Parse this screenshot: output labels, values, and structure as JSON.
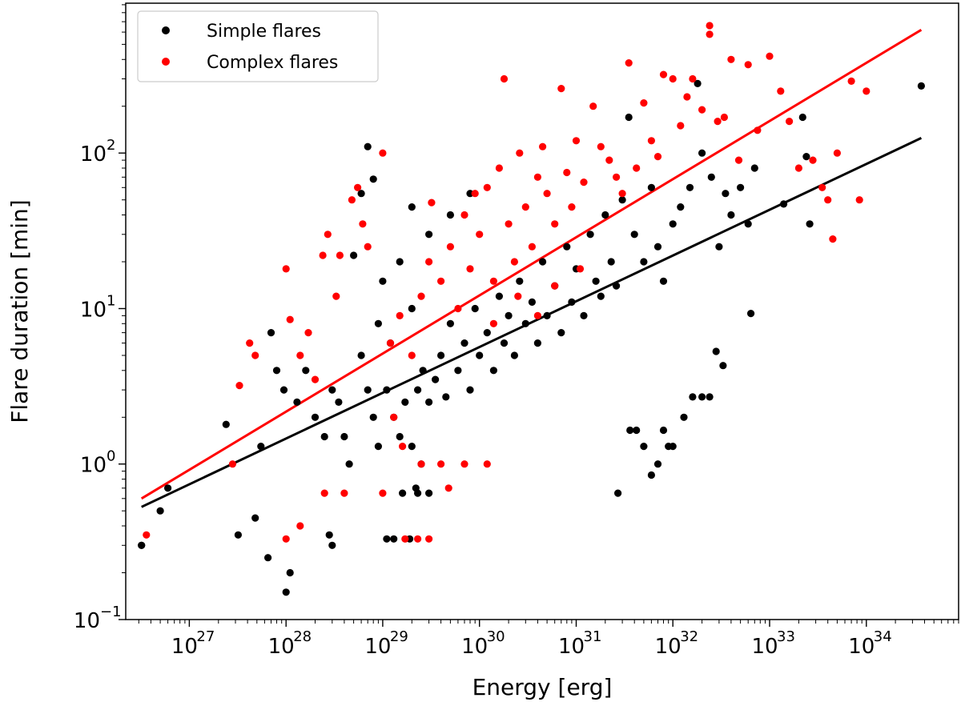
{
  "chart_data": {
    "type": "scatter",
    "xscale": "log",
    "yscale": "log",
    "xlim": [
      2.2e+26,
      9e+34
    ],
    "ylim": [
      0.1,
      920
    ],
    "xlabel": "Energy [erg]",
    "ylabel": "Flare duration [min]",
    "x_ticks": [
      {
        "base": "10",
        "exp": "27",
        "value": 1e+27
      },
      {
        "base": "10",
        "exp": "28",
        "value": 1e+28
      },
      {
        "base": "10",
        "exp": "29",
        "value": 1e+29
      },
      {
        "base": "10",
        "exp": "30",
        "value": 1e+30
      },
      {
        "base": "10",
        "exp": "31",
        "value": 1e+31
      },
      {
        "base": "10",
        "exp": "32",
        "value": 1e+32
      },
      {
        "base": "10",
        "exp": "33",
        "value": 1e+33
      },
      {
        "base": "10",
        "exp": "34",
        "value": 1e+34
      }
    ],
    "y_ticks": [
      {
        "base": "10",
        "exp": "−1",
        "value": 0.1
      },
      {
        "base": "10",
        "exp": "0",
        "value": 1
      },
      {
        "base": "10",
        "exp": "1",
        "value": 10
      },
      {
        "base": "10",
        "exp": "2",
        "value": 100
      }
    ],
    "grid": false,
    "legend_position": "top-left",
    "series": [
      {
        "name": "Simple flares",
        "color": "#000000",
        "points": [
          [
            3.2e+26,
            0.3
          ],
          [
            5e+26,
            0.5
          ],
          [
            6e+26,
            0.7
          ],
          [
            2.4e+27,
            1.8
          ],
          [
            3.2e+27,
            0.35
          ],
          [
            4.8e+27,
            0.45
          ],
          [
            6.5e+27,
            0.25
          ],
          [
            1e+28,
            0.15
          ],
          [
            1.1e+28,
            0.2
          ],
          [
            2.8e+28,
            0.35
          ],
          [
            3e+28,
            0.3
          ],
          [
            3.2e+26,
            0.3
          ],
          [
            5.5e+27,
            1.3
          ],
          [
            7e+27,
            7.0
          ],
          [
            8e+27,
            4.0
          ],
          [
            9.5e+27,
            3.0
          ],
          [
            1.3e+28,
            2.5
          ],
          [
            1.6e+28,
            4.0
          ],
          [
            2e+28,
            2.0
          ],
          [
            2.5e+28,
            1.5
          ],
          [
            3e+28,
            3.0
          ],
          [
            3.5e+28,
            2.5
          ],
          [
            4e+28,
            1.5
          ],
          [
            4.5e+28,
            1.0
          ],
          [
            5e+28,
            22.0
          ],
          [
            6e+28,
            55.0
          ],
          [
            7e+28,
            110.0
          ],
          [
            8e+28,
            68.0
          ],
          [
            6e+28,
            5.0
          ],
          [
            7e+28,
            3.0
          ],
          [
            8e+28,
            2.0
          ],
          [
            9e+28,
            1.3
          ],
          [
            1.1e+29,
            3.0
          ],
          [
            1.3e+29,
            2.0
          ],
          [
            1.5e+29,
            1.5
          ],
          [
            1.7e+29,
            2.5
          ],
          [
            2e+29,
            1.3
          ],
          [
            2.3e+29,
            3.0
          ],
          [
            2.6e+29,
            4.0
          ],
          [
            3e+29,
            2.5
          ],
          [
            3.5e+29,
            3.5
          ],
          [
            4e+29,
            5.0
          ],
          [
            4.5e+29,
            2.7
          ],
          [
            5e+29,
            8.0
          ],
          [
            6e+29,
            4.0
          ],
          [
            7e+29,
            6.0
          ],
          [
            8e+29,
            3.0
          ],
          [
            9e+29,
            10.0
          ],
          [
            1e+30,
            5.0
          ],
          [
            1.2e+30,
            7.0
          ],
          [
            1.4e+30,
            4.0
          ],
          [
            1.6e+30,
            12.0
          ],
          [
            1.8e+30,
            6.0
          ],
          [
            2e+30,
            9.0
          ],
          [
            2.3e+30,
            5.0
          ],
          [
            2.6e+30,
            15.0
          ],
          [
            3e+30,
            8.0
          ],
          [
            3.5e+30,
            11.0
          ],
          [
            4e+30,
            6.0
          ],
          [
            4.5e+30,
            20.0
          ],
          [
            5e+30,
            9.0
          ],
          [
            6e+30,
            14.0
          ],
          [
            7e+30,
            7.0
          ],
          [
            8e+30,
            25.0
          ],
          [
            9e+30,
            11.0
          ],
          [
            1e+31,
            18.0
          ],
          [
            1.2e+31,
            9.0
          ],
          [
            1.4e+31,
            30.0
          ],
          [
            1.6e+31,
            15.0
          ],
          [
            1.8e+31,
            12.0
          ],
          [
            2e+31,
            40.0
          ],
          [
            2.3e+31,
            20.0
          ],
          [
            2.6e+31,
            14.0
          ],
          [
            3e+31,
            50.0
          ],
          [
            3.5e+31,
            170.0
          ],
          [
            4e+31,
            30.0
          ],
          [
            5e+31,
            20.0
          ],
          [
            6e+31,
            60.0
          ],
          [
            7e+31,
            25.0
          ],
          [
            8e+31,
            15.0
          ],
          [
            1e+32,
            35.0
          ],
          [
            1.2e+32,
            45.0
          ],
          [
            1.5e+32,
            60.0
          ],
          [
            1.8e+32,
            280.0
          ],
          [
            2e+32,
            100.0
          ],
          [
            2.5e+32,
            70.0
          ],
          [
            3e+32,
            25.0
          ],
          [
            3.5e+32,
            55.0
          ],
          [
            4e+32,
            40.0
          ],
          [
            5e+32,
            60.0
          ],
          [
            6e+32,
            35.0
          ],
          [
            7e+32,
            80.0
          ],
          [
            2.2e+33,
            170.0
          ],
          [
            2.4e+33,
            95.0
          ],
          [
            2.6e+33,
            35.0
          ],
          [
            1.4e+33,
            47.0
          ],
          [
            3.7e+34,
            270.0
          ],
          [
            2.7e+31,
            0.65
          ],
          [
            3.6e+31,
            1.65
          ],
          [
            4.2e+31,
            1.65
          ],
          [
            5e+31,
            1.3
          ],
          [
            6e+31,
            0.85
          ],
          [
            7e+31,
            1.0
          ],
          [
            8e+31,
            1.65
          ],
          [
            9e+31,
            1.3
          ],
          [
            1e+32,
            1.3
          ],
          [
            1.3e+32,
            2.0
          ],
          [
            1.6e+32,
            2.7
          ],
          [
            2e+32,
            2.7
          ],
          [
            2.4e+32,
            2.7
          ],
          [
            2.8e+32,
            5.3
          ],
          [
            3.3e+32,
            4.3
          ],
          [
            6.4e+32,
            9.3
          ],
          [
            2e+29,
            45.0
          ],
          [
            5e+29,
            40.0
          ],
          [
            8e+29,
            55.0
          ],
          [
            1.5e+29,
            20.0
          ],
          [
            3e+29,
            30.0
          ],
          [
            1e+29,
            15.0
          ],
          [
            9e+28,
            8.0
          ],
          [
            1.2e+29,
            6.0
          ],
          [
            2e+29,
            10.0
          ],
          [
            2.5e+29,
            1.0
          ],
          [
            3e+29,
            0.65
          ],
          [
            2.2e+29,
            0.7
          ],
          [
            1.6e+29,
            0.65
          ],
          [
            1.3e+29,
            0.33
          ],
          [
            1.1e+29,
            0.33
          ],
          [
            1.9e+29,
            0.33
          ],
          [
            2.3e+29,
            0.65
          ]
        ]
      },
      {
        "name": "Complex flares",
        "color": "#ff0000",
        "points": [
          [
            3.6e+26,
            0.35
          ],
          [
            2.8e+27,
            1.0
          ],
          [
            3.3e+27,
            3.2
          ],
          [
            4.2e+27,
            6.0
          ],
          [
            4.8e+27,
            5.0
          ],
          [
            1e+28,
            18.0
          ],
          [
            1.1e+28,
            8.5
          ],
          [
            1.4e+28,
            5.0
          ],
          [
            1.7e+28,
            7.0
          ],
          [
            2e+28,
            3.5
          ],
          [
            2.4e+28,
            22.0
          ],
          [
            2.7e+28,
            30.0
          ],
          [
            3.3e+28,
            12.0
          ],
          [
            3.6e+28,
            22.0
          ],
          [
            4.8e+28,
            50.0
          ],
          [
            5.5e+28,
            60.0
          ],
          [
            6.2e+28,
            35.0
          ],
          [
            7e+28,
            25.0
          ],
          [
            1e+29,
            100.0
          ],
          [
            1.2e+29,
            6.0
          ],
          [
            1.5e+29,
            9.0
          ],
          [
            2e+29,
            5.0
          ],
          [
            2.5e+29,
            12.0
          ],
          [
            3e+29,
            20.0
          ],
          [
            3.2e+29,
            48.0
          ],
          [
            4e+29,
            15.0
          ],
          [
            5e+29,
            25.0
          ],
          [
            6e+29,
            10.0
          ],
          [
            7e+29,
            40.0
          ],
          [
            8e+29,
            18.0
          ],
          [
            9e+29,
            55.0
          ],
          [
            1e+30,
            30.0
          ],
          [
            1.2e+30,
            60.0
          ],
          [
            1.4e+30,
            15.0
          ],
          [
            1.6e+30,
            80.0
          ],
          [
            1.8e+30,
            300.0
          ],
          [
            2e+30,
            35.0
          ],
          [
            2.3e+30,
            20.0
          ],
          [
            2.6e+30,
            100.0
          ],
          [
            3e+30,
            45.0
          ],
          [
            3.5e+30,
            25.0
          ],
          [
            4e+30,
            70.0
          ],
          [
            4.5e+30,
            110.0
          ],
          [
            5e+30,
            55.0
          ],
          [
            6e+30,
            35.0
          ],
          [
            7e+30,
            260.0
          ],
          [
            8e+30,
            75.0
          ],
          [
            9e+30,
            45.0
          ],
          [
            1e+31,
            120.0
          ],
          [
            1.2e+31,
            65.0
          ],
          [
            1.5e+31,
            200.0
          ],
          [
            1.8e+31,
            110.0
          ],
          [
            2.2e+31,
            90.0
          ],
          [
            2.6e+31,
            70.0
          ],
          [
            3e+31,
            55.0
          ],
          [
            3.5e+31,
            380.0
          ],
          [
            4.2e+31,
            80.0
          ],
          [
            5e+31,
            210.0
          ],
          [
            6e+31,
            120.0
          ],
          [
            7e+31,
            95.0
          ],
          [
            8e+31,
            320.0
          ],
          [
            1e+32,
            300.0
          ],
          [
            1.2e+32,
            150.0
          ],
          [
            1.4e+32,
            230.0
          ],
          [
            1.6e+32,
            300.0
          ],
          [
            2e+32,
            190.0
          ],
          [
            2.4e+32,
            580.0
          ],
          [
            2.9e+32,
            160.0
          ],
          [
            3.4e+32,
            170.0
          ],
          [
            4e+32,
            400.0
          ],
          [
            4.8e+32,
            90.0
          ],
          [
            6e+32,
            370.0
          ],
          [
            7.5e+32,
            140.0
          ],
          [
            1e+33,
            420.0
          ],
          [
            1.3e+33,
            250.0
          ],
          [
            1.6e+33,
            160.0
          ],
          [
            2e+33,
            80.0
          ],
          [
            2.8e+33,
            90.0
          ],
          [
            3.5e+33,
            60.0
          ],
          [
            4e+33,
            50.0
          ],
          [
            5e+33,
            100.0
          ],
          [
            7e+33,
            290.0
          ],
          [
            8.5e+33,
            50.0
          ],
          [
            1e+34,
            250.0
          ],
          [
            4.5e+33,
            28.0
          ],
          [
            2.4e+32,
            660.0
          ],
          [
            1.4e+30,
            8.0
          ],
          [
            2.5e+30,
            12.0
          ],
          [
            4e+30,
            9.0
          ],
          [
            6e+30,
            14.0
          ],
          [
            1.1e+31,
            18.0
          ],
          [
            1.3e+29,
            2.0
          ],
          [
            1.6e+29,
            1.3
          ],
          [
            2.5e+29,
            1.0
          ],
          [
            4.8e+29,
            0.7
          ],
          [
            2.5e+28,
            0.65
          ],
          [
            4e+28,
            0.65
          ],
          [
            1e+29,
            0.65
          ],
          [
            1.7e+29,
            0.33
          ],
          [
            2.3e+29,
            0.33
          ],
          [
            3e+29,
            0.33
          ],
          [
            1e+28,
            0.33
          ],
          [
            1.4e+28,
            0.4
          ],
          [
            4e+29,
            1.0
          ],
          [
            7e+29,
            1.0
          ],
          [
            1.2e+30,
            1.0
          ]
        ]
      }
    ],
    "fit_lines": [
      {
        "series": "Simple flares",
        "color": "#000000",
        "x": [
          3.2e+26,
          3.7e+34
        ],
        "y": [
          0.53,
          125.0
        ]
      },
      {
        "series": "Complex flares",
        "color": "#ff0000",
        "x": [
          3.2e+26,
          3.7e+34
        ],
        "y": [
          0.6,
          620.0
        ]
      }
    ]
  }
}
